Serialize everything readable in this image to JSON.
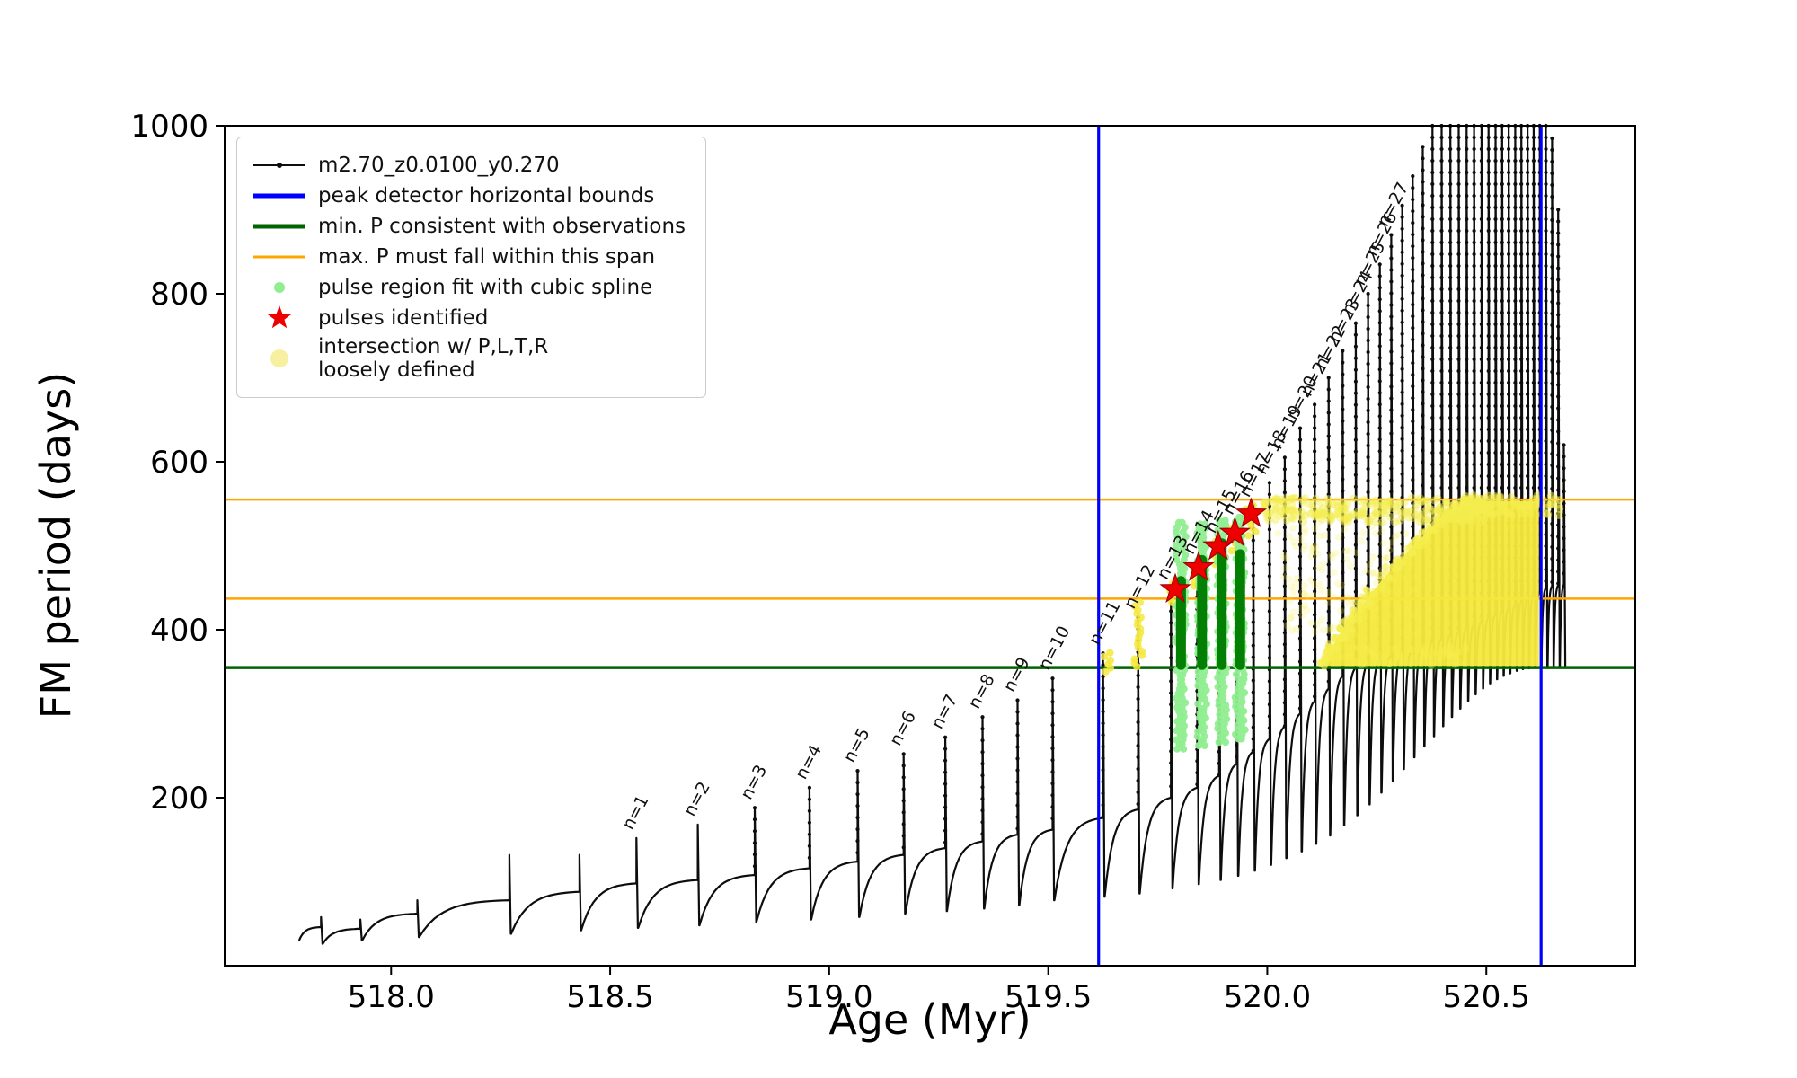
{
  "figure": {
    "background": "#ffffff"
  },
  "legend": {
    "items": [
      {
        "label": "m2.70_z0.0100_y0.270",
        "marker": "line-dot",
        "color": "#0d0d0d",
        "lw": 2
      },
      {
        "label": "peak detector horizontal bounds",
        "marker": "line",
        "color": "#0000ff",
        "lw": 5
      },
      {
        "label": "min. P consistent with observations",
        "marker": "line",
        "color": "#006400",
        "lw": 5
      },
      {
        "label": "max. P must fall within this span",
        "marker": "line",
        "color": "#ffa500",
        "lw": 3
      },
      {
        "label": "pulse region fit with cubic spline",
        "marker": "dot",
        "color": "#90ee90",
        "r": 6
      },
      {
        "label": "pulses identified",
        "marker": "star",
        "color": "#ee0000",
        "r": 14
      },
      {
        "label": "intersection w/ P,L,T,R\nloosely defined",
        "marker": "dot",
        "color": "#f7f0a0",
        "r": 10
      }
    ]
  },
  "chart_data": {
    "type": "line",
    "title": "",
    "xlabel": "Age (Myr)",
    "ylabel": "FM period (days)",
    "xlim": [
      517.62,
      520.84
    ],
    "ylim": [
      0,
      1000
    ],
    "grid": false,
    "legend_position": "upper left",
    "xticks": [
      {
        "v": 518.0,
        "label": "518.0"
      },
      {
        "v": 518.5,
        "label": "518.5"
      },
      {
        "v": 519.0,
        "label": "519.0"
      },
      {
        "v": 519.5,
        "label": "519.5"
      },
      {
        "v": 520.0,
        "label": "520.0"
      },
      {
        "v": 520.5,
        "label": "520.5"
      }
    ],
    "yticks": [
      {
        "v": 200,
        "label": "200"
      },
      {
        "v": 400,
        "label": "400"
      },
      {
        "v": 600,
        "label": "600"
      },
      {
        "v": 800,
        "label": "800"
      },
      {
        "v": 1000,
        "label": "1000"
      }
    ],
    "colors": {
      "series": "#0d0d0d",
      "peak_bounds": "#0000ff",
      "min_P": "#006400",
      "max_P_span": "#ffa500",
      "spline": "#90ee90",
      "pulse_bar": "#038003",
      "star": "#ee0000",
      "intersection_fill": "#f5e93d",
      "intersection_dot": "#f5ee4e"
    },
    "series": [
      {
        "name": "m2.70_z0.0100_y0.270",
        "style": "black line with point markers; sawtooth thermal-pulse train",
        "pulses_format": "[age_Myr_of_spike, spike_peak_P_days, shoulder_P_days, base_P_days, label]",
        "pulses": [
          [
            517.84,
            58,
            46,
            30,
            ""
          ],
          [
            517.93,
            55,
            44,
            26,
            ""
          ],
          [
            518.06,
            78,
            62,
            30,
            ""
          ],
          [
            518.27,
            132,
            78,
            34,
            ""
          ],
          [
            518.43,
            132,
            88,
            38,
            ""
          ],
          [
            518.56,
            152,
            98,
            42,
            "n=1"
          ],
          [
            518.7,
            168,
            102,
            45,
            "n=2"
          ],
          [
            518.83,
            188,
            108,
            48,
            "n=3"
          ],
          [
            518.955,
            212,
            116,
            52,
            "n=4"
          ],
          [
            519.065,
            232,
            124,
            55,
            "n=5"
          ],
          [
            519.17,
            252,
            132,
            58,
            "n=6"
          ],
          [
            519.265,
            272,
            140,
            62,
            "n=7"
          ],
          [
            519.35,
            296,
            148,
            65,
            "n=8"
          ],
          [
            519.43,
            316,
            156,
            68,
            "n=9"
          ],
          [
            519.51,
            342,
            162,
            72,
            "n=10"
          ],
          [
            519.625,
            372,
            176,
            78,
            "n=11"
          ],
          [
            519.705,
            415,
            186,
            82,
            "n=12"
          ],
          [
            519.78,
            450,
            200,
            86,
            "n=13"
          ],
          [
            519.84,
            480,
            212,
            92,
            "n=14"
          ],
          [
            519.89,
            505,
            226,
            97,
            "n=15"
          ],
          [
            519.93,
            527,
            240,
            102,
            "n=16"
          ],
          [
            519.968,
            548,
            255,
            107,
            "n=17"
          ],
          [
            520.005,
            575,
            270,
            113,
            "n=18"
          ],
          [
            520.04,
            605,
            285,
            120,
            "n=19"
          ],
          [
            520.075,
            640,
            300,
            128,
            "n=20"
          ],
          [
            520.108,
            668,
            315,
            136,
            "n=21"
          ],
          [
            520.14,
            700,
            330,
            145,
            "n=22"
          ],
          [
            520.172,
            732,
            345,
            155,
            "n=23"
          ],
          [
            520.202,
            765,
            355,
            167,
            "n=24"
          ],
          [
            520.23,
            800,
            360,
            179,
            "n=25"
          ],
          [
            520.257,
            835,
            365,
            192,
            "n=26"
          ],
          [
            520.283,
            870,
            370,
            206,
            "n=27"
          ],
          [
            520.308,
            905,
            374,
            220,
            ""
          ],
          [
            520.332,
            940,
            378,
            234,
            ""
          ],
          [
            520.355,
            975,
            382,
            248,
            ""
          ],
          [
            520.377,
            1000,
            386,
            261,
            ""
          ],
          [
            520.398,
            1000,
            390,
            273,
            ""
          ],
          [
            520.418,
            1000,
            394,
            285,
            ""
          ],
          [
            520.437,
            1000,
            398,
            296,
            ""
          ],
          [
            520.455,
            1000,
            402,
            306,
            ""
          ],
          [
            520.472,
            1000,
            406,
            315,
            ""
          ],
          [
            520.489,
            1000,
            410,
            323,
            ""
          ],
          [
            520.505,
            1000,
            414,
            330,
            ""
          ],
          [
            520.521,
            1000,
            418,
            336,
            ""
          ],
          [
            520.536,
            1000,
            422,
            341,
            ""
          ],
          [
            520.551,
            1000,
            426,
            345,
            ""
          ],
          [
            520.566,
            1000,
            430,
            348,
            ""
          ],
          [
            520.58,
            1000,
            434,
            351,
            ""
          ],
          [
            520.594,
            1000,
            438,
            353,
            ""
          ],
          [
            520.608,
            1000,
            442,
            354,
            ""
          ],
          [
            520.622,
            1000,
            446,
            355,
            ""
          ],
          [
            520.636,
            1000,
            450,
            356,
            ""
          ],
          [
            520.65,
            985,
            452,
            356,
            ""
          ],
          [
            520.664,
            900,
            453,
            356,
            ""
          ],
          [
            520.677,
            620,
            454,
            356,
            ""
          ]
        ]
      }
    ],
    "peak_detector_bounds_x": [
      519.615,
      520.625
    ],
    "min_P_consistent_y": 355,
    "max_P_span_y": [
      437,
      555
    ],
    "spline_fit_clusters": [
      {
        "x": 519.803,
        "y0": 258,
        "y1": 528
      },
      {
        "x": 519.851,
        "y0": 262,
        "y1": 530
      },
      {
        "x": 519.896,
        "y0": 266,
        "y1": 532
      },
      {
        "x": 519.938,
        "y0": 270,
        "y1": 534
      }
    ],
    "pulse_region_bars": [
      {
        "x": 519.803,
        "y0": 358,
        "y1": 458
      },
      {
        "x": 519.851,
        "y0": 358,
        "y1": 483
      },
      {
        "x": 519.896,
        "y0": 358,
        "y1": 503
      },
      {
        "x": 519.938,
        "y0": 358,
        "y1": 490
      }
    ],
    "pulses_identified": [
      [
        519.79,
        448
      ],
      [
        519.843,
        474
      ],
      [
        519.888,
        499
      ],
      [
        519.926,
        515
      ],
      [
        519.963,
        538
      ]
    ],
    "intersection": {
      "wedge": [
        [
          520.125,
          357
        ],
        [
          520.155,
          385
        ],
        [
          520.2,
          418
        ],
        [
          520.26,
          458
        ],
        [
          520.33,
          498
        ],
        [
          520.4,
          535
        ],
        [
          520.46,
          553
        ],
        [
          520.62,
          553
        ],
        [
          520.62,
          357
        ]
      ],
      "edge_dot_count": 180,
      "scatter_regions": [
        {
          "x0": 519.99,
          "x1": 520.5,
          "y0": 528,
          "y1": 557,
          "n": 260,
          "r": 4.5,
          "alpha": 0.45
        },
        {
          "x0": 520.02,
          "x1": 520.34,
          "y0": 395,
          "y1": 528,
          "n": 140,
          "r": 4.0,
          "alpha": 0.22
        },
        {
          "x0": 520.45,
          "x1": 520.67,
          "y0": 536,
          "y1": 560,
          "n": 90,
          "r": 4.5,
          "alpha": 0.5
        },
        {
          "x0": 520.13,
          "x1": 520.46,
          "y0": 357,
          "y1": 380,
          "n": 80,
          "r": 4.0,
          "alpha": 0.35
        }
      ],
      "clusters": [
        {
          "x": 519.635,
          "y0": 350,
          "y1": 374,
          "w": 8
        },
        {
          "x": 519.705,
          "y0": 356,
          "y1": 436,
          "w": 9
        },
        {
          "x": 519.785,
          "y0": 428,
          "y1": 455,
          "w": 9
        },
        {
          "x": 519.84,
          "y0": 452,
          "y1": 480,
          "w": 9
        },
        {
          "x": 519.885,
          "y0": 478,
          "y1": 505,
          "w": 9
        },
        {
          "x": 519.925,
          "y0": 494,
          "y1": 522,
          "w": 9
        },
        {
          "x": 519.963,
          "y0": 512,
          "y1": 548,
          "w": 12
        }
      ]
    }
  }
}
